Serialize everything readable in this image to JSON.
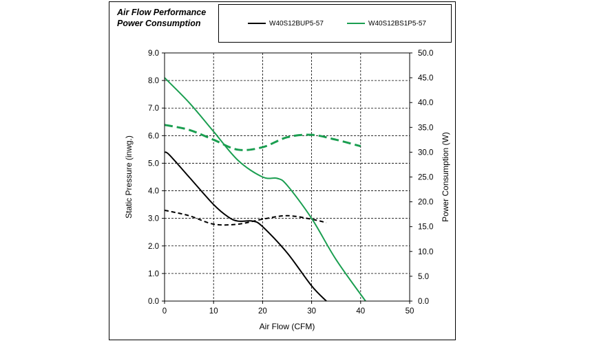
{
  "chart_data": {
    "type": "line",
    "title": [
      "Air Flow Performance",
      "Power Consumption"
    ],
    "xlabel": "Air Flow (CFM)",
    "ylabel_left": "Static Pressure (inwg.)",
    "ylabel_right": "Power Consumption (W)",
    "xlim": [
      0,
      50
    ],
    "ylim_left": [
      0,
      9
    ],
    "ylim_right": [
      0,
      50
    ],
    "x_ticks": [
      "0",
      "10",
      "20",
      "30",
      "40",
      "50"
    ],
    "y_left_ticks": [
      "0.0",
      "1.0",
      "2.0",
      "3.0",
      "4.0",
      "5.0",
      "6.0",
      "7.0",
      "8.0",
      "9.0"
    ],
    "y_right_ticks": [
      "0.0",
      "5.0",
      "10.0",
      "15.0",
      "20.0",
      "25.0",
      "30.0",
      "35.0",
      "40.0",
      "45.0",
      "50.0"
    ],
    "grid": true,
    "legend_position": "top",
    "legend": [
      {
        "name": "W40S12BUP5-57",
        "color": "#000000"
      },
      {
        "name": "W40S12BS1P5-57",
        "color": "#1a9e50"
      }
    ],
    "series": [
      {
        "name": "W40S12BUP5-57",
        "quantity": "static pressure",
        "axis": "left",
        "color": "#000000",
        "dashed": false,
        "x": [
          0,
          1,
          5,
          10,
          13,
          15,
          18,
          20,
          25,
          30,
          33
        ],
        "y": [
          5.4,
          5.3,
          4.5,
          3.5,
          3.05,
          2.9,
          2.9,
          2.7,
          1.75,
          0.55,
          0.0
        ]
      },
      {
        "name": "W40S12BUP5-57",
        "quantity": "power consumption",
        "axis": "right",
        "color": "#000000",
        "dashed": true,
        "x": [
          0,
          5,
          10,
          15,
          20,
          25,
          30,
          33
        ],
        "y": [
          18.3,
          17.2,
          15.5,
          15.5,
          16.5,
          17.2,
          16.5,
          15.8
        ]
      },
      {
        "name": "W40S12BS1P5-57",
        "quantity": "static pressure",
        "axis": "left",
        "color": "#1a9e50",
        "dashed": false,
        "x": [
          0,
          5,
          10,
          15,
          20,
          23,
          25,
          30,
          35,
          41
        ],
        "y": [
          8.1,
          7.2,
          6.15,
          5.1,
          4.5,
          4.45,
          4.2,
          3.0,
          1.5,
          0.0
        ]
      },
      {
        "name": "W40S12BS1P5-57",
        "quantity": "power consumption",
        "axis": "right",
        "color": "#1a9e50",
        "dashed": true,
        "x": [
          0,
          5,
          10,
          15,
          20,
          25,
          30,
          35,
          40
        ],
        "y": [
          35.5,
          34.5,
          32.5,
          30.5,
          31.0,
          33.0,
          33.5,
          32.5,
          31.2
        ]
      }
    ]
  }
}
